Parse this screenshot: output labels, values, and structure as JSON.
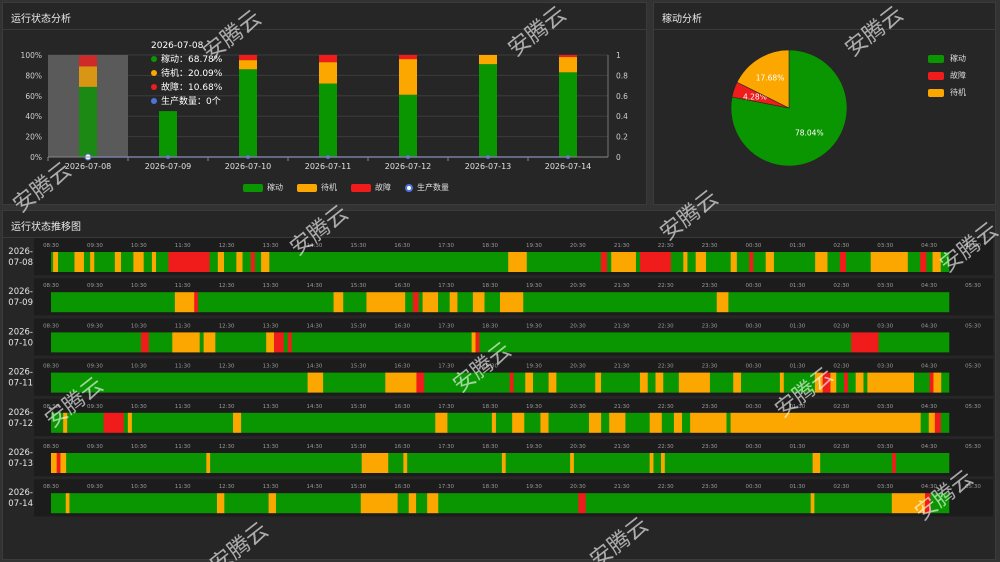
{
  "panels": {
    "status_title": "运行状态分析",
    "pie_title": "稼动分析",
    "trend_title": "运行状态推移图"
  },
  "colors": {
    "run": "#0a9600",
    "idle": "#fba700",
    "fault": "#f01c1c",
    "count": "#4c73d9"
  },
  "status_chart": {
    "legend": [
      "稼动",
      "待机",
      "故障",
      "生产数量"
    ],
    "left_ticks": [
      "0%",
      "20%",
      "40%",
      "60%",
      "80%",
      "100%"
    ],
    "right_ticks": [
      "0",
      "0.2",
      "0.4",
      "0.6",
      "0.8",
      "1"
    ],
    "tooltip": {
      "date": "2026-07-08",
      "rows": [
        {
          "label": "稼动",
          "value": "68.78%",
          "color": "#0a9600"
        },
        {
          "label": "待机",
          "value": "20.09%",
          "color": "#fba700"
        },
        {
          "label": "故障",
          "value": "10.68%",
          "color": "#f01c1c"
        },
        {
          "label": "生产数量",
          "value": "0个",
          "color": "#4c73d9"
        }
      ]
    }
  },
  "chart_data": [
    {
      "type": "bar",
      "stacked": true,
      "categories": [
        "2026-07-08",
        "2026-07-09",
        "2026-07-10",
        "2026-07-11",
        "2026-07-12",
        "2026-07-13",
        "2026-07-14"
      ],
      "series": [
        {
          "name": "稼动",
          "values": [
            68.78,
            45,
            86,
            72,
            61,
            91,
            83
          ]
        },
        {
          "name": "待机",
          "values": [
            20.09,
            0,
            9,
            21,
            35,
            9,
            15
          ]
        },
        {
          "name": "故障",
          "values": [
            10.68,
            0,
            5,
            7,
            4,
            0,
            2
          ]
        },
        {
          "name": "生产数量",
          "type": "line",
          "axis": "right",
          "values": [
            0,
            0,
            0,
            0,
            0,
            0,
            0
          ]
        }
      ],
      "ylim": [
        0,
        100
      ],
      "y2lim": [
        0,
        1
      ],
      "highlight_category": "2026-07-08"
    },
    {
      "type": "pie",
      "labels": [
        "稼动",
        "故障",
        "待机"
      ],
      "values": [
        78.04,
        4.28,
        17.68
      ],
      "value_labels": [
        "78.04%",
        "4.28%",
        "17.68%"
      ]
    }
  ],
  "trend": {
    "time_ticks": [
      "08:30",
      "09:30",
      "10:30",
      "11:30",
      "12:30",
      "13:30",
      "14:30",
      "15:30",
      "16:30",
      "17:30",
      "18:30",
      "19:30",
      "20:30",
      "21:30",
      "22:30",
      "23:30",
      "00:30",
      "01:30",
      "02:30",
      "03:30",
      "04:30",
      "05:30"
    ],
    "rows": [
      {
        "date": "2026-07-08",
        "segments": [
          [
            "r",
            0.5
          ],
          [
            "i",
            1.2
          ],
          [
            "r",
            4
          ],
          [
            "i",
            2.3
          ],
          [
            "r",
            1.5
          ],
          [
            "i",
            1
          ],
          [
            "r",
            5
          ],
          [
            "i",
            1.5
          ],
          [
            "r",
            3
          ],
          [
            "i",
            2.5
          ],
          [
            "r",
            2
          ],
          [
            "i",
            1
          ],
          [
            "r",
            3
          ],
          [
            "f",
            10
          ],
          [
            "r",
            2
          ],
          [
            "i",
            1.5
          ],
          [
            "r",
            3
          ],
          [
            "i",
            1.5
          ],
          [
            "r",
            2
          ],
          [
            "f",
            1
          ],
          [
            "r",
            1.5
          ],
          [
            "i",
            2
          ],
          [
            "r",
            58
          ],
          [
            "i",
            4.5
          ],
          [
            "r",
            18
          ],
          [
            "f",
            1.5
          ],
          [
            "r",
            1
          ],
          [
            "i",
            6
          ],
          [
            "r",
            1
          ],
          [
            "f",
            7.5
          ],
          [
            "r",
            3
          ],
          [
            "i",
            1
          ],
          [
            "r",
            2
          ],
          [
            "i",
            2.5
          ],
          [
            "r",
            6
          ],
          [
            "i",
            1.5
          ],
          [
            "r",
            3
          ],
          [
            "f",
            1
          ],
          [
            "r",
            3
          ],
          [
            "i",
            2
          ],
          [
            "r",
            10
          ],
          [
            "i",
            3
          ],
          [
            "r",
            3
          ],
          [
            "f",
            1.5
          ],
          [
            "r",
            6
          ],
          [
            "i",
            9
          ],
          [
            "r",
            3
          ],
          [
            "f",
            1.5
          ],
          [
            "r",
            1.5
          ],
          [
            "i",
            2
          ],
          [
            "r",
            2
          ]
        ]
      },
      {
        "date": "2026-07-09",
        "segments": [
          [
            "r",
            32
          ],
          [
            "i",
            5
          ],
          [
            "f",
            1
          ],
          [
            "r",
            35
          ],
          [
            "i",
            2.5
          ],
          [
            "r",
            6
          ],
          [
            "i",
            10
          ],
          [
            "r",
            2
          ],
          [
            "f",
            1.5
          ],
          [
            "r",
            1
          ],
          [
            "i",
            4
          ],
          [
            "r",
            3
          ],
          [
            "i",
            2
          ],
          [
            "r",
            4
          ],
          [
            "i",
            3
          ],
          [
            "r",
            4
          ],
          [
            "i",
            6
          ],
          [
            "r",
            50
          ],
          [
            "i",
            3
          ],
          [
            "r",
            57
          ]
        ]
      },
      {
        "date": "2026-07-10",
        "segments": [
          [
            "r",
            23
          ],
          [
            "f",
            2
          ],
          [
            "r",
            6
          ],
          [
            "i",
            7
          ],
          [
            "r",
            1
          ],
          [
            "i",
            3
          ],
          [
            "r",
            13
          ],
          [
            "i",
            2
          ],
          [
            "f",
            2.5
          ],
          [
            "r",
            1
          ],
          [
            "f",
            1
          ],
          [
            "r",
            46
          ],
          [
            "i",
            1
          ],
          [
            "f",
            1
          ],
          [
            "r",
            95
          ],
          [
            "f",
            7
          ],
          [
            "r",
            18
          ]
        ]
      },
      {
        "date": "2026-07-11",
        "segments": [
          [
            "r",
            66
          ],
          [
            "i",
            4
          ],
          [
            "r",
            16
          ],
          [
            "i",
            8
          ],
          [
            "f",
            2
          ],
          [
            "r",
            22
          ],
          [
            "f",
            1
          ],
          [
            "r",
            3
          ],
          [
            "i",
            2
          ],
          [
            "r",
            4
          ],
          [
            "i",
            2
          ],
          [
            "r",
            10
          ],
          [
            "i",
            1.5
          ],
          [
            "r",
            10
          ],
          [
            "i",
            2
          ],
          [
            "r",
            2
          ],
          [
            "i",
            2
          ],
          [
            "r",
            4
          ],
          [
            "i",
            8
          ],
          [
            "r",
            6
          ],
          [
            "i",
            2
          ],
          [
            "r",
            10
          ],
          [
            "i",
            1
          ],
          [
            "r",
            8
          ],
          [
            "i",
            2
          ],
          [
            "f",
            2
          ],
          [
            "i",
            1.5
          ],
          [
            "r",
            2
          ],
          [
            "f",
            1
          ],
          [
            "r",
            2
          ],
          [
            "i",
            2
          ],
          [
            "r",
            1
          ],
          [
            "i",
            12
          ],
          [
            "r",
            4
          ],
          [
            "f",
            1
          ],
          [
            "i",
            2
          ],
          [
            "r",
            2
          ]
        ]
      },
      {
        "date": "2026-07-12",
        "segments": [
          [
            "r",
            3
          ],
          [
            "i",
            1
          ],
          [
            "r",
            9
          ],
          [
            "f",
            5
          ],
          [
            "r",
            1
          ],
          [
            "i",
            1
          ],
          [
            "r",
            25
          ],
          [
            "i",
            2
          ],
          [
            "r",
            48
          ],
          [
            "i",
            3
          ],
          [
            "r",
            11
          ],
          [
            "i",
            1
          ],
          [
            "r",
            4
          ],
          [
            "i",
            3
          ],
          [
            "r",
            4
          ],
          [
            "i",
            2
          ],
          [
            "r",
            10
          ],
          [
            "i",
            3
          ],
          [
            "r",
            2
          ],
          [
            "i",
            4
          ],
          [
            "r",
            6
          ],
          [
            "i",
            3
          ],
          [
            "r",
            3
          ],
          [
            "i",
            2
          ],
          [
            "r",
            2
          ],
          [
            "i",
            9
          ],
          [
            "r",
            1
          ],
          [
            "i",
            47
          ],
          [
            "r",
            2
          ],
          [
            "i",
            1.5
          ],
          [
            "f",
            1.5
          ],
          [
            "r",
            2
          ]
        ]
      },
      {
        "date": "2026-07-13",
        "segments": [
          [
            "i",
            1.5
          ],
          [
            "f",
            1
          ],
          [
            "i",
            1.5
          ],
          [
            "r",
            37
          ],
          [
            "i",
            1
          ],
          [
            "r",
            40
          ],
          [
            "i",
            7
          ],
          [
            "r",
            4
          ],
          [
            "i",
            1
          ],
          [
            "r",
            25
          ],
          [
            "i",
            1
          ],
          [
            "r",
            17
          ],
          [
            "i",
            1
          ],
          [
            "r",
            20
          ],
          [
            "i",
            1
          ],
          [
            "r",
            2
          ],
          [
            "i",
            1
          ],
          [
            "r",
            39
          ],
          [
            "i",
            2
          ],
          [
            "r",
            19
          ],
          [
            "f",
            1
          ],
          [
            "r",
            14
          ]
        ]
      },
      {
        "date": "2026-07-14",
        "segments": [
          [
            "r",
            4
          ],
          [
            "i",
            1
          ],
          [
            "r",
            40
          ],
          [
            "i",
            2
          ],
          [
            "r",
            12
          ],
          [
            "i",
            2
          ],
          [
            "r",
            23
          ],
          [
            "i",
            10
          ],
          [
            "r",
            3
          ],
          [
            "i",
            2
          ],
          [
            "r",
            3
          ],
          [
            "i",
            3
          ],
          [
            "r",
            38
          ],
          [
            "f",
            2
          ],
          [
            "r",
            61
          ],
          [
            "i",
            1
          ],
          [
            "r",
            21
          ],
          [
            "i",
            9
          ],
          [
            "f",
            1.5
          ],
          [
            "r",
            5
          ]
        ]
      }
    ]
  },
  "watermark": "安腾云"
}
